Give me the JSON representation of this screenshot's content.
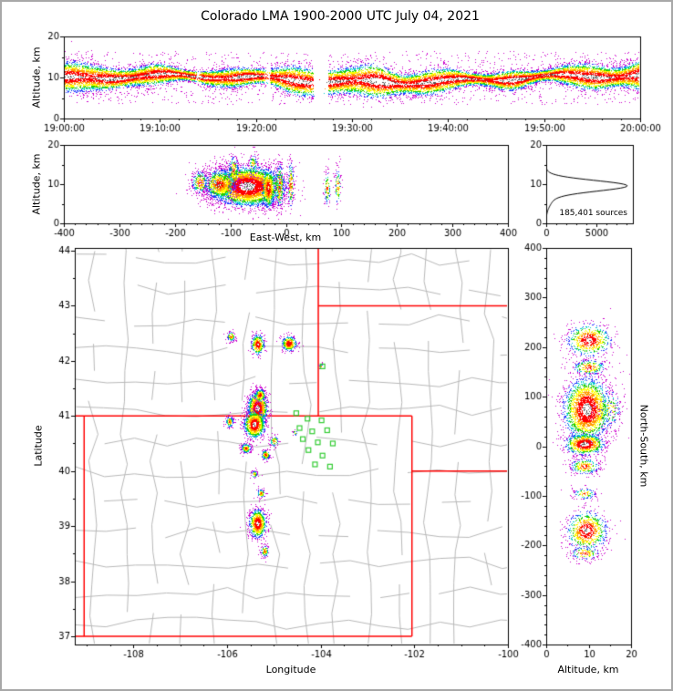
{
  "title": "Colorado LMA 1900-2000 UTC July 04, 2021",
  "figure": {
    "background": "#ffffff",
    "border_color": "#a8a8a8"
  },
  "density_palette": [
    "#ffffff",
    "#ff0000",
    "#ff9900",
    "#ffff00",
    "#22cc00",
    "#00cccc",
    "#2233ff",
    "#cc00cc"
  ],
  "density_thresholds": [
    0.22,
    0.45,
    0.6,
    0.74,
    0.86,
    0.97,
    1.12
  ],
  "core_speckle_color": "#555555",
  "chart_data": [
    {
      "id": "time_height",
      "type": "scatter-density",
      "ylabel": "Altitude, km",
      "xlim": [
        0,
        3600
      ],
      "ylim": [
        0,
        20
      ],
      "x_tick_values": [
        0,
        600,
        1200,
        1800,
        2400,
        3000,
        3600
      ],
      "x_tick_labels": [
        "19:00:00",
        "19:10:00",
        "19:20:00",
        "19:30:00",
        "19:40:00",
        "19:50:00",
        "20:00:00"
      ],
      "y_tick_values": [
        0,
        10,
        20
      ],
      "y_tick_labels": [
        "0",
        "10",
        "20"
      ],
      "n_points": 24000,
      "band": {
        "alt_mean": 9.7,
        "alt_sigma": 1.35
      },
      "gaps": [
        [
          820,
          850,
          0.85
        ],
        [
          1250,
          1290,
          0.9
        ],
        [
          1555,
          1650,
          0.99
        ]
      ]
    },
    {
      "id": "ew_height",
      "type": "scatter-density",
      "xlabel": "East-West, km",
      "ylabel": "Altitude, km",
      "xlim": [
        -400,
        400
      ],
      "ylim": [
        0,
        20
      ],
      "x_tick_values": [
        -400,
        -300,
        -200,
        -100,
        0,
        100,
        200,
        300,
        400
      ],
      "x_tick_labels": [
        "-400",
        "-300",
        "-200",
        "-100",
        "0",
        "100",
        "200",
        "300",
        "400"
      ],
      "y_tick_values": [
        0,
        10,
        20
      ],
      "y_tick_labels": [
        "0",
        "10",
        "20"
      ],
      "clusters": [
        {
          "x": -70,
          "y": 9.5,
          "sx": 32,
          "sy": 2.4,
          "n": 5200,
          "intensity": 1.0
        },
        {
          "x": -120,
          "y": 10.0,
          "sx": 16,
          "sy": 2.2,
          "n": 900,
          "intensity": 0.62
        },
        {
          "x": -155,
          "y": 10.5,
          "sx": 9,
          "sy": 1.8,
          "n": 260,
          "intensity": 0.45
        },
        {
          "x": -95,
          "y": 13.5,
          "sx": 6,
          "sy": 2.6,
          "n": 200,
          "intensity": 0.35
        },
        {
          "x": -60,
          "y": 15.0,
          "sx": 5,
          "sy": 2.0,
          "n": 120,
          "intensity": 0.25
        },
        {
          "x": -32,
          "y": 9.0,
          "sx": 6,
          "sy": 2.6,
          "n": 520,
          "intensity": 0.8
        },
        {
          "x": -12,
          "y": 9.5,
          "sx": 4,
          "sy": 3.2,
          "n": 300,
          "intensity": 0.6
        },
        {
          "x": 8,
          "y": 10.0,
          "sx": 3,
          "sy": 3.4,
          "n": 160,
          "intensity": 0.5
        },
        {
          "x": 74,
          "y": 9.0,
          "sx": 3,
          "sy": 2.4,
          "n": 110,
          "intensity": 0.5
        },
        {
          "x": 93,
          "y": 9.5,
          "sx": 3,
          "sy": 2.6,
          "n": 110,
          "intensity": 0.5
        }
      ]
    },
    {
      "id": "alt_histogram",
      "type": "line",
      "annotation": "185,401 sources",
      "xlim": [
        0,
        8600
      ],
      "ylim": [
        0,
        20
      ],
      "x_tick_values": [
        0,
        5000
      ],
      "x_tick_labels": [
        "0",
        "5000"
      ],
      "y_tick_values": [
        0,
        10,
        20
      ],
      "y_tick_labels": [
        "0",
        "10",
        "20"
      ],
      "profile": {
        "peak": 7900,
        "center": 9.6,
        "sigma": 1.35,
        "shoulder_peak": 600,
        "shoulder_center": 6.4,
        "shoulder_sigma": 1.9
      }
    },
    {
      "id": "map",
      "type": "scatter-density-map",
      "xlabel": "Longitude",
      "ylabel": "Latitude",
      "xlim": [
        -109.25,
        -100.0
      ],
      "ylim": [
        36.85,
        44.05
      ],
      "x_tick_values": [
        -108,
        -106,
        -104,
        -102,
        -100
      ],
      "x_tick_labels": [
        "-108",
        "-106",
        "-104",
        "-102",
        "-100"
      ],
      "y_tick_values": [
        37,
        38,
        39,
        40,
        41,
        42,
        43,
        44
      ],
      "y_tick_labels": [
        "37",
        "38",
        "39",
        "40",
        "41",
        "42",
        "43",
        "44"
      ],
      "border_color": "#ff0000",
      "county_color": "#b8b8b8",
      "station_color": "#33cc33",
      "state_borders": [
        [
          [
            -109.05,
            37
          ],
          [
            -109.05,
            41
          ]
        ],
        [
          [
            -109.25,
            41
          ],
          [
            -102.05,
            41
          ]
        ],
        [
          [
            -102.05,
            41
          ],
          [
            -102.05,
            37
          ]
        ],
        [
          [
            -109.25,
            37
          ],
          [
            -102.05,
            37
          ]
        ],
        [
          [
            -104.05,
            41
          ],
          [
            -104.05,
            44.05
          ]
        ],
        [
          [
            -104.05,
            43
          ],
          [
            -100,
            43
          ]
        ],
        [
          [
            -102.05,
            40
          ],
          [
            -100,
            40
          ]
        ]
      ],
      "stations": [
        [
          -104.52,
          41.05
        ],
        [
          -104.28,
          40.95
        ],
        [
          -103.98,
          40.92
        ],
        [
          -104.45,
          40.78
        ],
        [
          -104.18,
          40.72
        ],
        [
          -103.86,
          40.74
        ],
        [
          -104.38,
          40.58
        ],
        [
          -104.06,
          40.52
        ],
        [
          -103.74,
          40.5
        ],
        [
          -104.26,
          40.38
        ],
        [
          -103.96,
          40.28
        ],
        [
          -104.12,
          40.12
        ],
        [
          -103.8,
          40.08
        ],
        [
          -103.96,
          41.9
        ]
      ],
      "county_grid": {
        "lon_step": 0.65,
        "lat_step": 0.55,
        "jitter": 0.22
      },
      "clusters": [
        {
          "x": -105.92,
          "y": 42.45,
          "sx": 0.05,
          "sy": 0.05,
          "n": 110,
          "intensity": 0.5
        },
        {
          "x": -105.35,
          "y": 42.3,
          "sx": 0.07,
          "sy": 0.09,
          "n": 380,
          "intensity": 0.85
        },
        {
          "x": -104.68,
          "y": 42.32,
          "sx": 0.08,
          "sy": 0.07,
          "n": 380,
          "intensity": 0.8
        },
        {
          "x": -104.0,
          "y": 41.9,
          "sx": 0.03,
          "sy": 0.03,
          "n": 25,
          "intensity": 0.35
        },
        {
          "x": -105.35,
          "y": 41.15,
          "sx": 0.1,
          "sy": 0.14,
          "n": 1700,
          "intensity": 1.0
        },
        {
          "x": -105.42,
          "y": 40.85,
          "sx": 0.11,
          "sy": 0.12,
          "n": 1100,
          "intensity": 0.95
        },
        {
          "x": -105.3,
          "y": 41.38,
          "sx": 0.06,
          "sy": 0.06,
          "n": 260,
          "intensity": 0.7
        },
        {
          "x": -105.95,
          "y": 40.9,
          "sx": 0.05,
          "sy": 0.06,
          "n": 120,
          "intensity": 0.45
        },
        {
          "x": -105.6,
          "y": 40.42,
          "sx": 0.06,
          "sy": 0.05,
          "n": 200,
          "intensity": 0.55
        },
        {
          "x": -105.18,
          "y": 40.3,
          "sx": 0.05,
          "sy": 0.05,
          "n": 170,
          "intensity": 0.55
        },
        {
          "x": -105.0,
          "y": 40.55,
          "sx": 0.06,
          "sy": 0.06,
          "n": 80,
          "intensity": 0.4
        },
        {
          "x": -104.55,
          "y": 40.7,
          "sx": 0.03,
          "sy": 0.03,
          "n": 20,
          "intensity": 0.3
        },
        {
          "x": -105.42,
          "y": 39.95,
          "sx": 0.04,
          "sy": 0.04,
          "n": 60,
          "intensity": 0.35
        },
        {
          "x": -105.28,
          "y": 39.6,
          "sx": 0.05,
          "sy": 0.05,
          "n": 90,
          "intensity": 0.4
        },
        {
          "x": -105.35,
          "y": 39.05,
          "sx": 0.09,
          "sy": 0.13,
          "n": 900,
          "intensity": 0.9
        },
        {
          "x": -105.2,
          "y": 38.55,
          "sx": 0.05,
          "sy": 0.06,
          "n": 120,
          "intensity": 0.45
        }
      ]
    },
    {
      "id": "ns_height",
      "type": "scatter-density",
      "xlabel": "Altitude, km",
      "ylabel": "North-South, km",
      "xlim": [
        0,
        20
      ],
      "ylim": [
        -400,
        400
      ],
      "x_tick_values": [
        0,
        10,
        20
      ],
      "x_tick_labels": [
        "0",
        "10",
        "20"
      ],
      "y_tick_values": [
        -400,
        -300,
        -200,
        -100,
        0,
        100,
        200,
        300,
        400
      ],
      "y_tick_labels": [
        "-400",
        "-300",
        "-200",
        "-100",
        "0",
        "100",
        "200",
        "300",
        "400"
      ],
      "clusters": [
        {
          "x": 10,
          "y": 215,
          "sx": 2.6,
          "sy": 16,
          "n": 700,
          "intensity": 0.85
        },
        {
          "x": 10,
          "y": 160,
          "sx": 2.2,
          "sy": 9,
          "n": 260,
          "intensity": 0.55
        },
        {
          "x": 9.5,
          "y": 75,
          "sx": 2.6,
          "sy": 30,
          "n": 2600,
          "intensity": 1.0
        },
        {
          "x": 9.0,
          "y": 5,
          "sx": 2.2,
          "sy": 10,
          "n": 900,
          "intensity": 1.0
        },
        {
          "x": 9.0,
          "y": -40,
          "sx": 2.0,
          "sy": 9,
          "n": 260,
          "intensity": 0.55
        },
        {
          "x": 9.0,
          "y": -95,
          "sx": 1.6,
          "sy": 7,
          "n": 110,
          "intensity": 0.4
        },
        {
          "x": 9.5,
          "y": -170,
          "sx": 2.4,
          "sy": 20,
          "n": 800,
          "intensity": 0.85
        },
        {
          "x": 9.0,
          "y": -215,
          "sx": 2.0,
          "sy": 8,
          "n": 170,
          "intensity": 0.5
        },
        {
          "x": 15,
          "y": 75,
          "sx": 1.8,
          "sy": 28,
          "n": 160,
          "intensity": 0.2
        }
      ]
    }
  ]
}
